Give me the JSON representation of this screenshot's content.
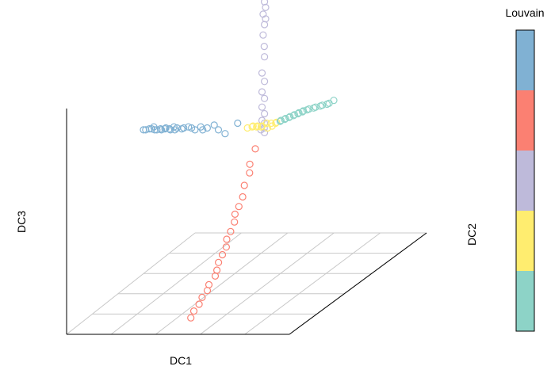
{
  "chart_data": {
    "type": "scatter",
    "projection": "3d",
    "title": "",
    "xlabel": "DC1",
    "ylabel": "DC2",
    "zlabel": "DC3",
    "grid": true,
    "legend": {
      "title": "Louvain",
      "placement": "right",
      "style": "colorbar",
      "colors": [
        "#80b1d3",
        "#fb8072",
        "#bebada",
        "#ffed6f",
        "#8dd3c7"
      ]
    },
    "series": [
      {
        "color": "#80b1d3",
        "points": [
          [
            -0.95,
            0.02,
            0.3
          ],
          [
            -0.93,
            0.02,
            0.3
          ],
          [
            -0.91,
            0.03,
            0.3
          ],
          [
            -0.89,
            0.03,
            0.3
          ],
          [
            -0.87,
            0.03,
            0.31
          ],
          [
            -0.85,
            0.02,
            0.3
          ],
          [
            -0.83,
            0.02,
            0.3
          ],
          [
            -0.81,
            0.03,
            0.3
          ],
          [
            -0.79,
            0.02,
            0.3
          ],
          [
            -0.77,
            0.03,
            0.3
          ],
          [
            -0.75,
            0.02,
            0.31
          ],
          [
            -0.73,
            0.03,
            0.3
          ],
          [
            -0.71,
            0.02,
            0.3
          ],
          [
            -0.69,
            0.03,
            0.31
          ],
          [
            -0.67,
            0.02,
            0.3
          ],
          [
            -0.65,
            0.02,
            0.31
          ],
          [
            -0.62,
            0.03,
            0.3
          ],
          [
            -0.59,
            0.02,
            0.31
          ],
          [
            -0.56,
            0.03,
            0.31
          ],
          [
            -0.52,
            0.02,
            0.31
          ],
          [
            -0.49,
            0.02,
            0.3
          ],
          [
            -0.45,
            0.03,
            0.31
          ],
          [
            -0.42,
            0.02,
            0.3
          ],
          [
            -0.38,
            0.02,
            0.31
          ],
          [
            -0.33,
            0.03,
            0.32
          ],
          [
            -0.28,
            0.02,
            0.3
          ],
          [
            -0.22,
            0.02,
            0.28
          ],
          [
            -0.12,
            0.03,
            0.33
          ]
        ]
      },
      {
        "color": "#fb8072",
        "points": [
          [
            0.05,
            0.02,
            0.2
          ],
          [
            0.05,
            -0.02,
            0.14
          ],
          [
            0.06,
            -0.03,
            0.1
          ],
          [
            0.05,
            -0.06,
            0.05
          ],
          [
            0.06,
            -0.08,
            0.0
          ],
          [
            0.05,
            -0.1,
            -0.04
          ],
          [
            0.04,
            -0.12,
            -0.07
          ],
          [
            0.06,
            -0.14,
            -0.1
          ],
          [
            0.05,
            -0.16,
            -0.14
          ],
          [
            0.04,
            -0.18,
            -0.17
          ],
          [
            0.06,
            -0.2,
            -0.2
          ],
          [
            0.05,
            -0.22,
            -0.23
          ],
          [
            0.04,
            -0.24,
            -0.26
          ],
          [
            0.05,
            -0.26,
            -0.29
          ],
          [
            0.06,
            -0.28,
            -0.31
          ],
          [
            0.04,
            -0.31,
            -0.34
          ],
          [
            0.05,
            -0.33,
            -0.36
          ],
          [
            0.04,
            -0.36,
            -0.38
          ],
          [
            0.05,
            -0.39,
            -0.4
          ],
          [
            0.04,
            -0.42,
            -0.42
          ],
          [
            0.05,
            -0.45,
            -0.44
          ]
        ]
      },
      {
        "color": "#bebada",
        "points": [
          [
            0.12,
            0.03,
            1.0
          ],
          [
            0.12,
            0.03,
            0.97
          ],
          [
            0.13,
            0.03,
            0.94
          ],
          [
            0.12,
            0.02,
            0.91
          ],
          [
            0.13,
            0.03,
            0.88
          ],
          [
            0.12,
            0.03,
            0.85
          ],
          [
            0.12,
            0.02,
            0.8
          ],
          [
            0.13,
            0.02,
            0.74
          ],
          [
            0.12,
            0.03,
            0.68
          ],
          [
            0.11,
            0.02,
            0.6
          ],
          [
            0.12,
            0.03,
            0.55
          ],
          [
            0.11,
            0.02,
            0.5
          ],
          [
            0.12,
            0.03,
            0.46
          ],
          [
            0.11,
            0.02,
            0.42
          ],
          [
            0.12,
            0.03,
            0.38
          ],
          [
            0.11,
            0.02,
            0.35
          ],
          [
            0.12,
            0.03,
            0.33
          ],
          [
            0.13,
            0.02,
            0.31
          ],
          [
            0.1,
            0.02,
            0.3
          ],
          [
            0.12,
            0.03,
            0.28
          ]
        ]
      },
      {
        "color": "#ffed6f",
        "points": [
          [
            -0.02,
            0.02,
            0.31
          ],
          [
            0.01,
            0.03,
            0.31
          ],
          [
            0.03,
            0.02,
            0.32
          ],
          [
            0.05,
            0.03,
            0.31
          ],
          [
            0.07,
            0.02,
            0.32
          ],
          [
            0.09,
            0.03,
            0.31
          ],
          [
            0.11,
            0.02,
            0.32
          ],
          [
            0.14,
            0.03,
            0.33
          ],
          [
            0.16,
            0.02,
            0.31
          ],
          [
            0.18,
            0.03,
            0.33
          ],
          [
            0.2,
            0.02,
            0.32
          ],
          [
            0.22,
            0.03,
            0.33
          ],
          [
            0.24,
            0.02,
            0.34
          ]
        ]
      },
      {
        "color": "#8dd3c7",
        "points": [
          [
            0.26,
            0.03,
            0.34
          ],
          [
            0.28,
            0.02,
            0.35
          ],
          [
            0.3,
            0.03,
            0.35
          ],
          [
            0.32,
            0.02,
            0.36
          ],
          [
            0.34,
            0.03,
            0.36
          ],
          [
            0.36,
            0.02,
            0.37
          ],
          [
            0.38,
            0.03,
            0.37
          ],
          [
            0.4,
            0.02,
            0.38
          ],
          [
            0.42,
            0.03,
            0.38
          ],
          [
            0.44,
            0.02,
            0.39
          ],
          [
            0.46,
            0.03,
            0.39
          ],
          [
            0.48,
            0.02,
            0.4
          ],
          [
            0.5,
            0.03,
            0.4
          ],
          [
            0.53,
            0.02,
            0.41
          ],
          [
            0.56,
            0.03,
            0.41
          ],
          [
            0.59,
            0.02,
            0.42
          ],
          [
            0.62,
            0.03,
            0.42
          ],
          [
            0.65,
            0.02,
            0.43
          ],
          [
            0.68,
            0.03,
            0.43
          ],
          [
            0.71,
            0.02,
            0.44
          ],
          [
            0.74,
            0.03,
            0.45
          ]
        ]
      }
    ]
  }
}
